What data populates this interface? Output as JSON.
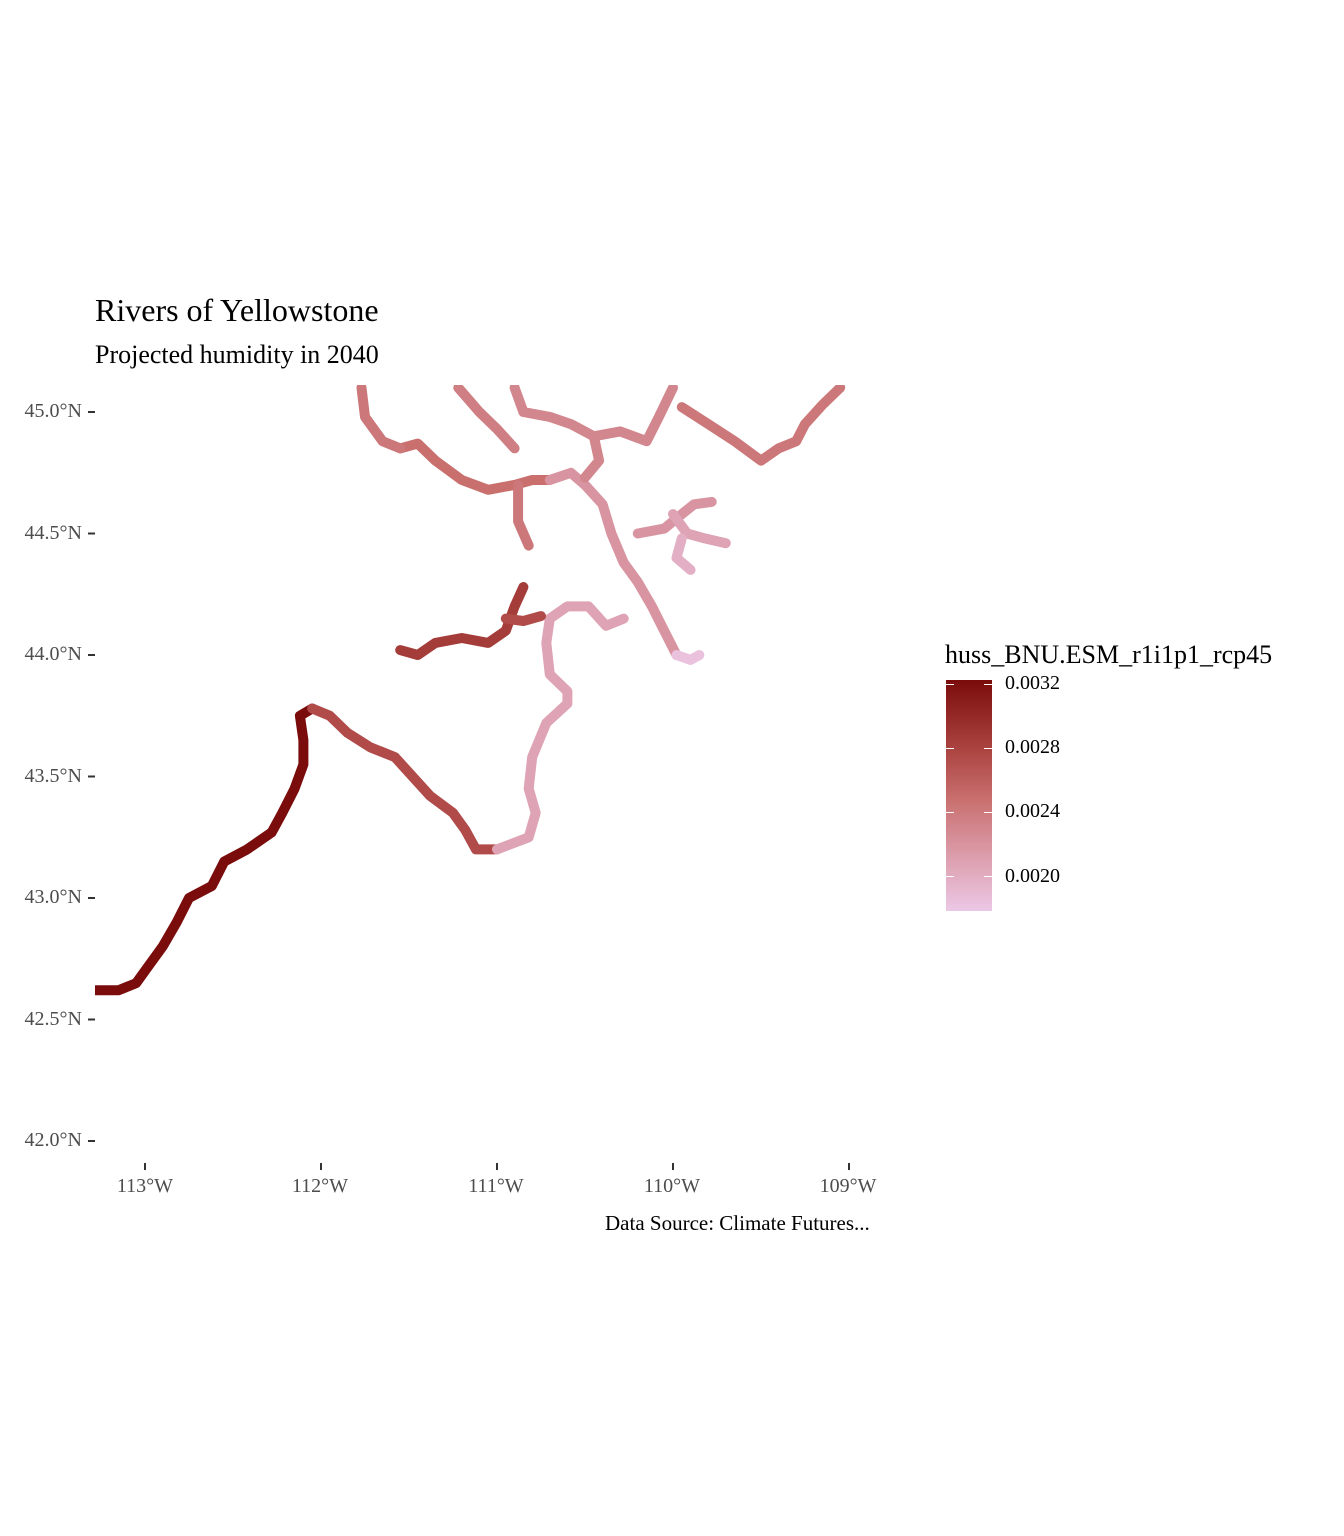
{
  "map": {
    "title": "Rivers of Yellowstone",
    "subtitle": "Projected humidity in 2040",
    "caption": "Data Source: Climate Futures...",
    "y_axis_labels": [
      "45.0°N",
      "44.5°N",
      "44.0°N",
      "43.5°N",
      "43.0°N",
      "42.5°N",
      "42.0°N"
    ],
    "x_axis_labels": [
      "113°W",
      "112°W",
      "111°W",
      "110°W",
      "109°W"
    ],
    "legend": {
      "title": "huss_BNU.ESM_r1i1p1_rcp45",
      "labels": [
        "0.0032",
        "0.0028",
        "0.0024",
        "0.0020"
      ],
      "colors": [
        "#7a0c0c",
        "#a8403d",
        "#c9706f",
        "#dda0b0",
        "#ecc8e6"
      ]
    }
  },
  "chart_data": {
    "type": "map",
    "title": "Rivers of Yellowstone",
    "subtitle": "Projected humidity in 2040",
    "xlabel": "",
    "ylabel": "",
    "xlim": [
      -113.3,
      -108.7
    ],
    "ylim": [
      41.9,
      45.1
    ],
    "x_ticks": [
      -113,
      -112,
      -111,
      -110,
      -109
    ],
    "y_ticks": [
      45.0,
      44.5,
      44.0,
      43.5,
      43.0,
      42.5,
      42.0
    ],
    "color_scale": {
      "name": "huss_BNU.ESM_r1i1p1_rcp45",
      "min": 0.0019,
      "max": 0.0032,
      "breaks": [
        0.0032,
        0.0028,
        0.0024,
        0.002
      ]
    },
    "rivers": [
      {
        "id": "snake-lower",
        "value": 0.00325,
        "points": [
          [
            -113.28,
            42.62
          ],
          [
            -113.15,
            42.62
          ],
          [
            -113.05,
            42.65
          ],
          [
            -112.98,
            42.72
          ],
          [
            -112.9,
            42.8
          ],
          [
            -112.82,
            42.9
          ],
          [
            -112.75,
            43.0
          ],
          [
            -112.62,
            43.05
          ],
          [
            -112.55,
            43.15
          ],
          [
            -112.42,
            43.2
          ],
          [
            -112.28,
            43.27
          ],
          [
            -112.22,
            43.35
          ],
          [
            -112.15,
            43.45
          ],
          [
            -112.1,
            43.55
          ],
          [
            -112.1,
            43.65
          ],
          [
            -112.12,
            43.75
          ],
          [
            -112.05,
            43.78
          ]
        ]
      },
      {
        "id": "snake-middle",
        "value": 0.0028,
        "points": [
          [
            -112.05,
            43.78
          ],
          [
            -111.95,
            43.75
          ],
          [
            -111.85,
            43.68
          ],
          [
            -111.72,
            43.62
          ],
          [
            -111.58,
            43.58
          ],
          [
            -111.48,
            43.5
          ],
          [
            -111.38,
            43.42
          ],
          [
            -111.25,
            43.35
          ],
          [
            -111.18,
            43.28
          ],
          [
            -111.12,
            43.2
          ],
          [
            -111.0,
            43.2
          ]
        ]
      },
      {
        "id": "snake-upper",
        "value": 0.0022,
        "points": [
          [
            -111.0,
            43.2
          ],
          [
            -110.82,
            43.25
          ],
          [
            -110.78,
            43.35
          ],
          [
            -110.82,
            43.45
          ],
          [
            -110.8,
            43.58
          ],
          [
            -110.72,
            43.72
          ],
          [
            -110.6,
            43.8
          ],
          [
            -110.6,
            43.85
          ],
          [
            -110.7,
            43.92
          ],
          [
            -110.72,
            44.05
          ],
          [
            -110.7,
            44.15
          ],
          [
            -110.6,
            44.2
          ],
          [
            -110.48,
            44.2
          ],
          [
            -110.38,
            44.12
          ],
          [
            -110.28,
            44.15
          ]
        ]
      },
      {
        "id": "henrys-fork",
        "value": 0.0029,
        "points": [
          [
            -111.55,
            44.02
          ],
          [
            -111.45,
            44.0
          ],
          [
            -111.35,
            44.05
          ],
          [
            -111.2,
            44.07
          ],
          [
            -111.05,
            44.05
          ],
          [
            -110.95,
            44.1
          ],
          [
            -110.9,
            44.2
          ],
          [
            -110.85,
            44.28
          ]
        ]
      },
      {
        "id": "falls-river",
        "value": 0.0028,
        "points": [
          [
            -110.95,
            44.15
          ],
          [
            -110.85,
            44.14
          ],
          [
            -110.75,
            44.16
          ]
        ]
      },
      {
        "id": "madison",
        "value": 0.00255,
        "points": [
          [
            -111.55,
            44.85
          ],
          [
            -111.45,
            44.87
          ],
          [
            -111.35,
            44.8
          ],
          [
            -111.2,
            44.72
          ],
          [
            -111.05,
            44.68
          ],
          [
            -110.9,
            44.7
          ],
          [
            -110.8,
            44.72
          ],
          [
            -110.7,
            44.72
          ]
        ]
      },
      {
        "id": "madison-south",
        "value": 0.0025,
        "points": [
          [
            -110.88,
            44.7
          ],
          [
            -110.88,
            44.55
          ],
          [
            -110.82,
            44.45
          ]
        ]
      },
      {
        "id": "gallatin",
        "value": 0.0025,
        "points": [
          [
            -111.77,
            45.1
          ],
          [
            -111.75,
            44.98
          ],
          [
            -111.65,
            44.88
          ],
          [
            -111.55,
            44.85
          ]
        ]
      },
      {
        "id": "gallatin-branch",
        "value": 0.00245,
        "points": [
          [
            -111.22,
            45.1
          ],
          [
            -111.1,
            45.0
          ],
          [
            -111.0,
            44.93
          ],
          [
            -110.9,
            44.85
          ]
        ]
      },
      {
        "id": "firehole",
        "value": 0.0023,
        "points": [
          [
            -110.7,
            44.72
          ],
          [
            -110.58,
            44.75
          ],
          [
            -110.5,
            44.7
          ],
          [
            -110.4,
            44.62
          ],
          [
            -110.35,
            44.5
          ],
          [
            -110.28,
            44.38
          ],
          [
            -110.2,
            44.3
          ],
          [
            -110.12,
            44.2
          ],
          [
            -110.05,
            44.1
          ],
          [
            -109.98,
            44.0
          ]
        ]
      },
      {
        "id": "gibbon",
        "value": 0.0024,
        "points": [
          [
            -110.9,
            45.1
          ],
          [
            -110.85,
            45.0
          ],
          [
            -110.7,
            44.98
          ],
          [
            -110.58,
            44.95
          ],
          [
            -110.45,
            44.9
          ],
          [
            -110.42,
            44.8
          ],
          [
            -110.5,
            44.73
          ]
        ]
      },
      {
        "id": "yellowstone-north",
        "value": 0.0024,
        "points": [
          [
            -110.45,
            44.9
          ],
          [
            -110.3,
            44.92
          ],
          [
            -110.15,
            44.88
          ],
          [
            -110.08,
            44.98
          ],
          [
            -110.0,
            45.1
          ]
        ]
      },
      {
        "id": "lamar",
        "value": 0.0025,
        "points": [
          [
            -109.95,
            45.02
          ],
          [
            -109.8,
            44.95
          ],
          [
            -109.65,
            44.88
          ],
          [
            -109.5,
            44.8
          ],
          [
            -109.4,
            44.85
          ],
          [
            -109.3,
            44.88
          ],
          [
            -109.25,
            44.95
          ],
          [
            -109.15,
            45.03
          ],
          [
            -109.05,
            45.1
          ]
        ]
      },
      {
        "id": "lewis",
        "value": 0.0023,
        "points": [
          [
            -110.2,
            44.5
          ],
          [
            -110.05,
            44.52
          ],
          [
            -109.95,
            44.58
          ],
          [
            -109.88,
            44.62
          ],
          [
            -109.78,
            44.63
          ]
        ]
      },
      {
        "id": "yellowstone-lake-inlet",
        "value": 0.0022,
        "points": [
          [
            -110.0,
            44.58
          ],
          [
            -109.92,
            44.5
          ],
          [
            -109.82,
            44.48
          ],
          [
            -109.7,
            44.46
          ]
        ]
      },
      {
        "id": "yellowstone-lake-south",
        "value": 0.0021,
        "points": [
          [
            -109.95,
            44.48
          ],
          [
            -109.98,
            44.4
          ],
          [
            -109.9,
            44.35
          ]
        ]
      },
      {
        "id": "snake-source",
        "value": 0.00195,
        "points": [
          [
            -109.98,
            44.0
          ],
          [
            -109.9,
            43.98
          ],
          [
            -109.85,
            44.0
          ]
        ]
      }
    ],
    "grid": false,
    "legend_position": "right"
  }
}
